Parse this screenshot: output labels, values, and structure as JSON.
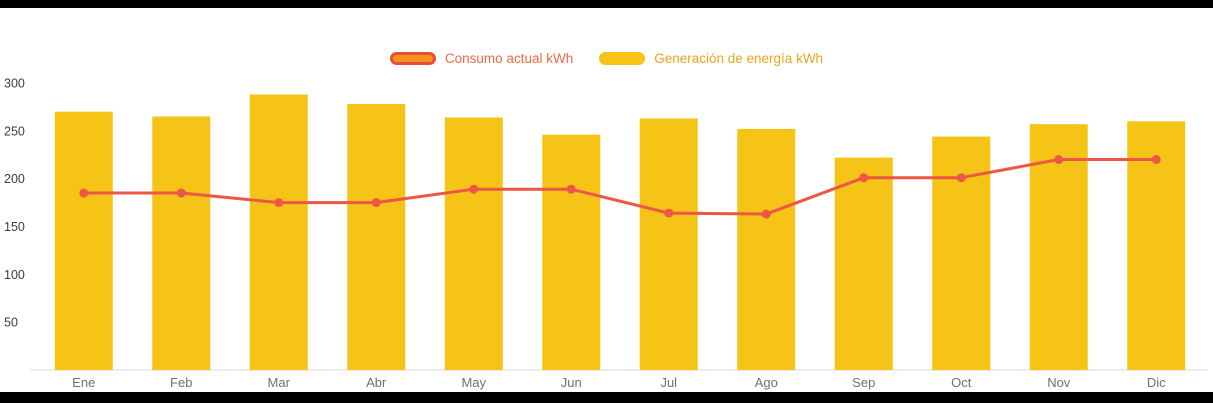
{
  "page": {
    "background": "#000000",
    "panel_background": "#ffffff"
  },
  "legend": {
    "items": [
      {
        "label": "Consumo actual kWh",
        "swatch_fill": "#F6921E",
        "swatch_border": "#E94E35",
        "label_color": "#EE6A45"
      },
      {
        "label": "Generación de energía kWh",
        "swatch_fill": "#F5C417",
        "swatch_border": "#F5C417",
        "label_color": "#EAA421"
      }
    ]
  },
  "chart_data": {
    "type": "bar+line",
    "title": "",
    "xlabel": "",
    "ylabel": "",
    "categories": [
      "Ene",
      "Feb",
      "Mar",
      "Abr",
      "May",
      "Jun",
      "Jul",
      "Ago",
      "Sep",
      "Oct",
      "Nov",
      "Dic"
    ],
    "series": [
      {
        "name": "Generación de energía kWh",
        "type": "bar",
        "color": "#F5C417",
        "values": [
          270,
          265,
          288,
          278,
          264,
          246,
          263,
          252,
          222,
          244,
          257,
          260
        ]
      },
      {
        "name": "Consumo actual kWh",
        "type": "line",
        "color": "#ED5745",
        "values": [
          185,
          185,
          175,
          175,
          189,
          189,
          164,
          163,
          201,
          201,
          220,
          220
        ]
      }
    ],
    "ylim": [
      0,
      300
    ],
    "yticks": [
      50,
      100,
      150,
      200,
      250,
      300
    ],
    "grid": false,
    "legend_position": "top-center",
    "axis": {
      "tick_label_color": "#3d3d3d",
      "category_label_color": "#707070",
      "baseline_color": "#d9d9d9"
    }
  }
}
